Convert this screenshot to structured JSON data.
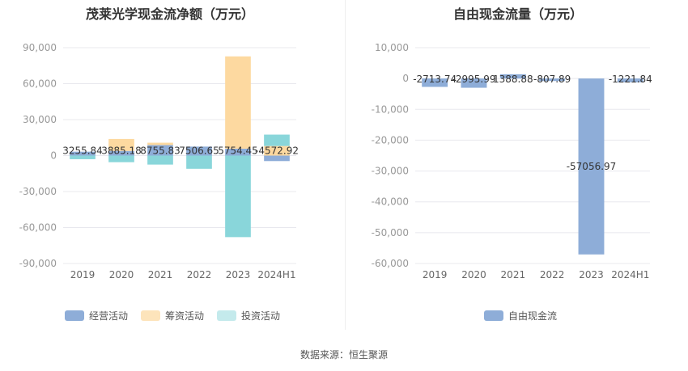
{
  "colors": {
    "operating": "#8eadd8",
    "financing": "#fdd9a0",
    "investing": "#89d6da",
    "free_cash_flow": "#8eadd8",
    "grid": "#e8e8ee",
    "axis_text": "#999999",
    "label_text": "#333333"
  },
  "source": "数据来源：恒生聚源",
  "chart_data": [
    {
      "type": "bar",
      "title": "茂莱光学现金流净额（万元）",
      "categories": [
        "2019",
        "2020",
        "2021",
        "2022",
        "2023",
        "2024H1"
      ],
      "ylim": [
        -90000,
        90000
      ],
      "yticks": [
        90000,
        60000,
        30000,
        0,
        -30000,
        -60000,
        -90000
      ],
      "ytick_labels": [
        "90,000",
        "60,000",
        "30,000",
        "0",
        "-30,000",
        "-60,000",
        "-90,000"
      ],
      "grid": true,
      "legend_position": "bottom",
      "series": [
        {
          "name": "经营活动",
          "color_key": "operating",
          "values": [
            3255.84,
            3885.18,
            8755.83,
            7506.65,
            5754.45,
            -4572.92
          ]
        },
        {
          "name": "筹资活动",
          "color_key": "financing",
          "values": [
            0,
            10000,
            2000,
            0,
            77000,
            8000
          ]
        },
        {
          "name": "投资活动",
          "color_key": "investing",
          "values": [
            -3000,
            -5500,
            -7500,
            -11000,
            -68000,
            9500
          ]
        }
      ],
      "data_labels": [
        "3255.84",
        "3885.18",
        "8755.83",
        "7506.65",
        "5754.45",
        "-4572.92"
      ]
    },
    {
      "type": "bar",
      "title": "自由现金流量（万元）",
      "categories": [
        "2019",
        "2020",
        "2021",
        "2022",
        "2023",
        "2024H1"
      ],
      "ylim": [
        -60000,
        10000
      ],
      "yticks": [
        10000,
        0,
        -10000,
        -20000,
        -30000,
        -40000,
        -50000,
        -60000
      ],
      "ytick_labels": [
        "10,000",
        "0",
        "-10,000",
        "-20,000",
        "-30,000",
        "-40,000",
        "-50,000",
        "-60,000"
      ],
      "grid": true,
      "legend_position": "bottom",
      "series": [
        {
          "name": "自由现金流",
          "color_key": "free_cash_flow",
          "values": [
            -2713.74,
            -2995.99,
            1388.88,
            -807.89,
            -57056.97,
            -1221.84
          ]
        }
      ],
      "data_labels": [
        "-2713.74",
        "-2995.99",
        "1388.88",
        "-807.89",
        "-57056.97",
        "-1221.84"
      ]
    }
  ]
}
